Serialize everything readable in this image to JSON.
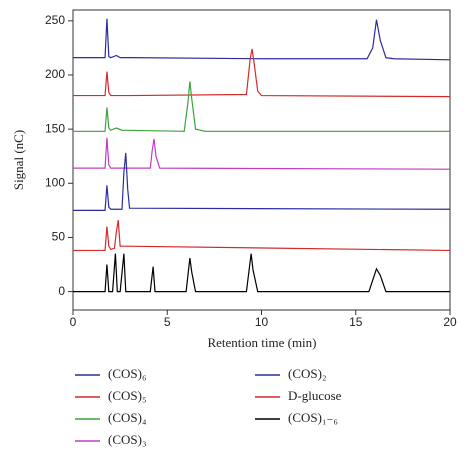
{
  "chart_data": {
    "type": "line",
    "xlabel": "Retention time (min)",
    "ylabel": "Signal (nC)",
    "xlim": [
      0,
      20
    ],
    "ylim": [
      -17,
      260
    ],
    "xticks": [
      0,
      5,
      10,
      15,
      20
    ],
    "yticks": [
      0,
      50,
      100,
      150,
      200,
      250
    ],
    "series": [
      {
        "name": "(COS)₆",
        "color": "#2c2ca0",
        "x": [
          0,
          1.7,
          1.8,
          1.9,
          2.0,
          2.3,
          2.5,
          3,
          10,
          15.6,
          15.9,
          16.1,
          16.3,
          16.6,
          17,
          20
        ],
        "values": [
          216,
          216,
          252,
          217,
          216,
          218,
          216,
          216,
          215,
          215,
          225,
          251,
          232,
          216,
          215,
          214
        ]
      },
      {
        "name": "(COS)₅",
        "color": "#d42a2a",
        "x": [
          0,
          1.7,
          1.8,
          1.9,
          2.0,
          3,
          9.2,
          9.4,
          9.5,
          9.6,
          9.8,
          10,
          20
        ],
        "values": [
          181,
          181,
          203,
          184,
          181,
          181,
          182,
          215,
          224,
          212,
          185,
          181,
          180
        ]
      },
      {
        "name": "(COS)₄",
        "color": "#3aa33a",
        "x": [
          0,
          1.7,
          1.8,
          1.9,
          2.0,
          2.3,
          2.6,
          5.9,
          6.1,
          6.2,
          6.3,
          6.5,
          7,
          20
        ],
        "values": [
          148,
          148,
          170,
          151,
          149,
          151,
          149,
          148,
          175,
          194,
          178,
          150,
          148,
          148
        ]
      },
      {
        "name": "(COS)₃",
        "color": "#c23cc2",
        "x": [
          0,
          1.7,
          1.8,
          1.9,
          2.0,
          4.1,
          4.2,
          4.3,
          4.4,
          4.6,
          20
        ],
        "values": [
          114,
          114,
          142,
          117,
          114,
          114,
          130,
          141,
          125,
          114,
          113
        ]
      },
      {
        "name": "(COS)₂",
        "color": "#2c2ca0",
        "x": [
          0,
          1.7,
          1.8,
          1.9,
          2.0,
          2.6,
          2.7,
          2.8,
          2.9,
          3.0,
          20
        ],
        "values": [
          75,
          75,
          98,
          78,
          76,
          76,
          110,
          128,
          95,
          77,
          76
        ]
      },
      {
        "name": "D-glucose",
        "color": "#d42a2a",
        "x": [
          0,
          1.7,
          1.8,
          1.9,
          2.0,
          2.2,
          2.3,
          2.4,
          2.5,
          20
        ],
        "values": [
          38,
          38,
          60,
          42,
          39,
          40,
          55,
          66,
          42,
          38
        ]
      },
      {
        "name": "(COS)₁₋₆",
        "color": "#000000",
        "x": [
          0,
          1.7,
          1.8,
          1.9,
          2.1,
          2.25,
          2.35,
          2.5,
          2.7,
          2.8,
          2.9,
          4.1,
          4.25,
          4.35,
          4.5,
          6.0,
          6.2,
          6.3,
          6.5,
          9.2,
          9.45,
          9.55,
          9.8,
          15.7,
          16.1,
          16.3,
          16.6,
          20
        ],
        "values": [
          0,
          0,
          25,
          0,
          0,
          35,
          0,
          0,
          35,
          0,
          0,
          0,
          23,
          0,
          0,
          0,
          31,
          18,
          0,
          0,
          35,
          20,
          0,
          0,
          21,
          15,
          0,
          0
        ]
      }
    ]
  }
}
